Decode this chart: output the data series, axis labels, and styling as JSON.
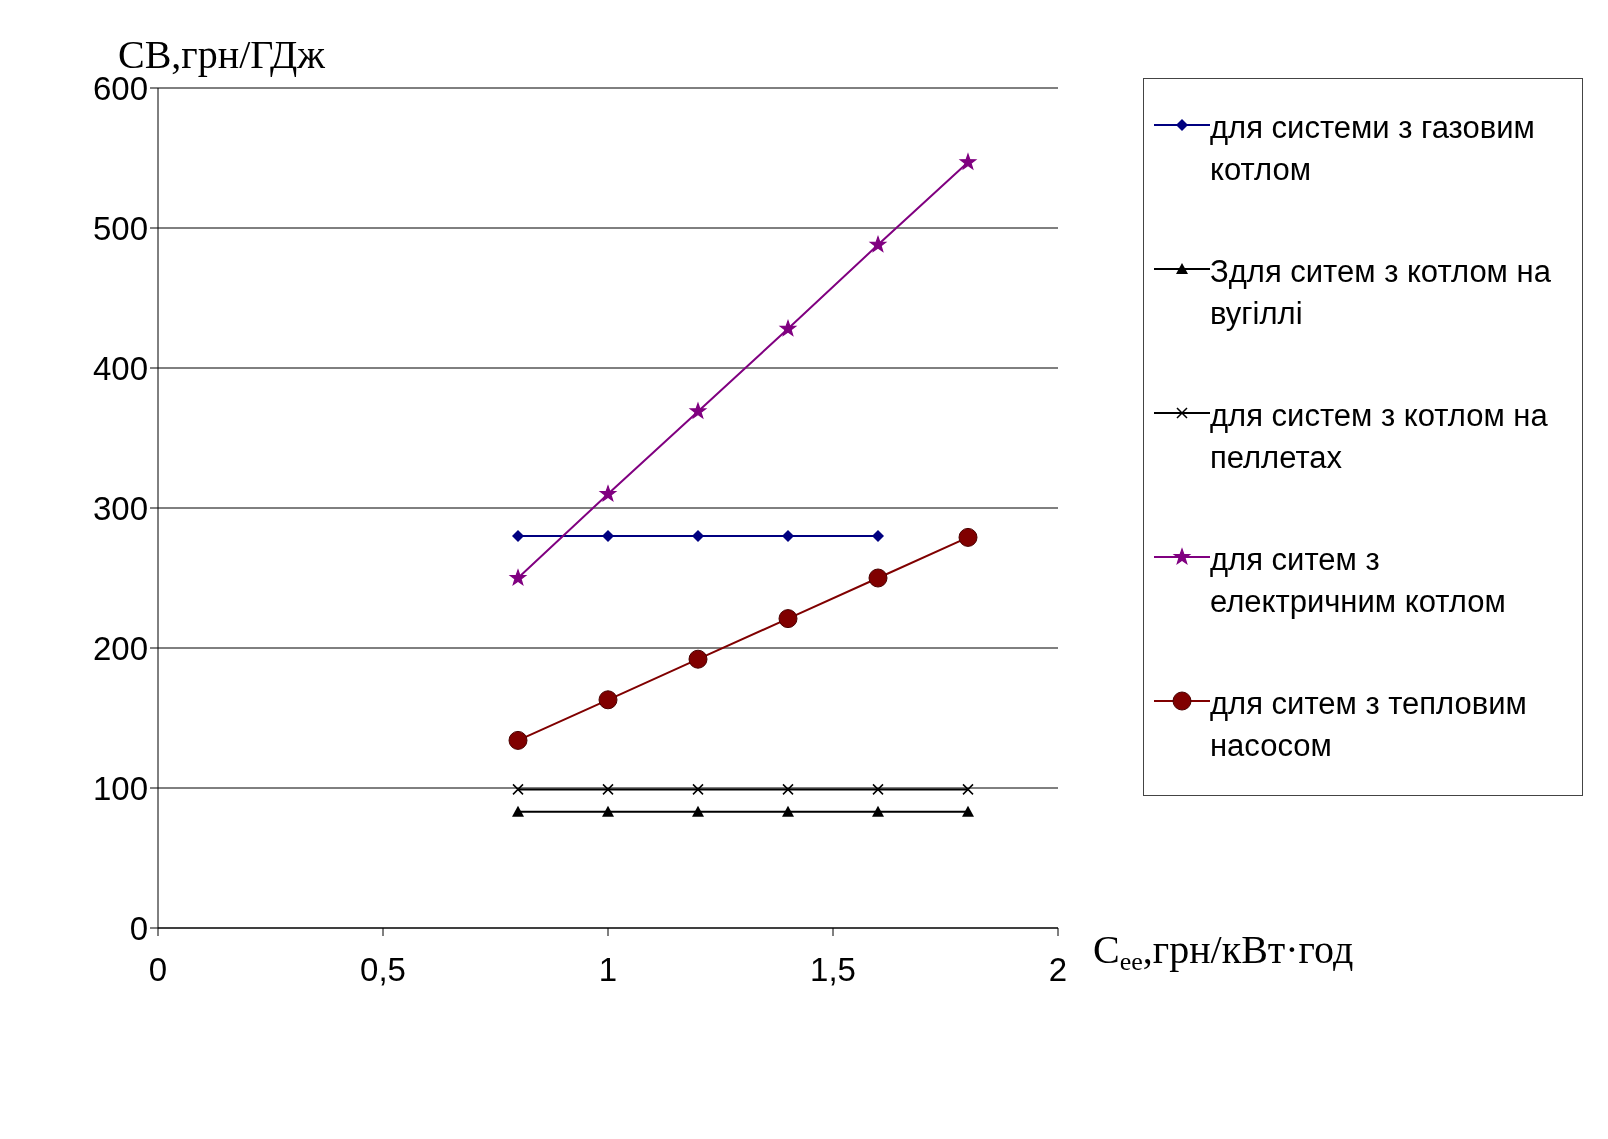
{
  "chart_data": {
    "type": "line",
    "xlabel": "C$_{ee}$,грн/кВт·год",
    "ylabel": "СВ,грн/ГДж",
    "x": [
      0.8,
      1,
      1.2,
      1.4,
      1.6,
      1.8
    ],
    "xlim": [
      0,
      2
    ],
    "xticks": [
      0,
      {
        "value": 0.5,
        "label": "0,5"
      },
      1,
      {
        "value": 1.5,
        "label": "1,5"
      },
      2
    ],
    "ylim": [
      0,
      600
    ],
    "yticks": [
      0,
      100,
      200,
      300,
      400,
      500,
      600
    ],
    "grid": "y",
    "legend": "right",
    "series": [
      {
        "name": "для системи з газовим котлом",
        "color": "#000080",
        "marker": "diamond",
        "values": [
          280,
          280,
          280,
          280,
          280,
          null
        ]
      },
      {
        "name": "Здля ситем з котлом на вугіллі",
        "color": "#000000",
        "marker": "triangle",
        "values": [
          83,
          83,
          83,
          83,
          83,
          83
        ]
      },
      {
        "name": "для систем з котлом на пеллетах",
        "color": "#000000",
        "marker": "cross",
        "values": [
          99,
          99,
          99,
          99,
          99,
          99
        ]
      },
      {
        "name": "для ситем з електричним котлом",
        "color": "#800080",
        "marker": "star",
        "values": [
          250,
          310,
          369,
          428,
          488,
          547
        ]
      },
      {
        "name": "для ситем з тепловим насосом",
        "color": "#800000",
        "marker": "circle",
        "values": [
          134,
          163,
          192,
          221,
          250,
          279
        ]
      }
    ]
  }
}
